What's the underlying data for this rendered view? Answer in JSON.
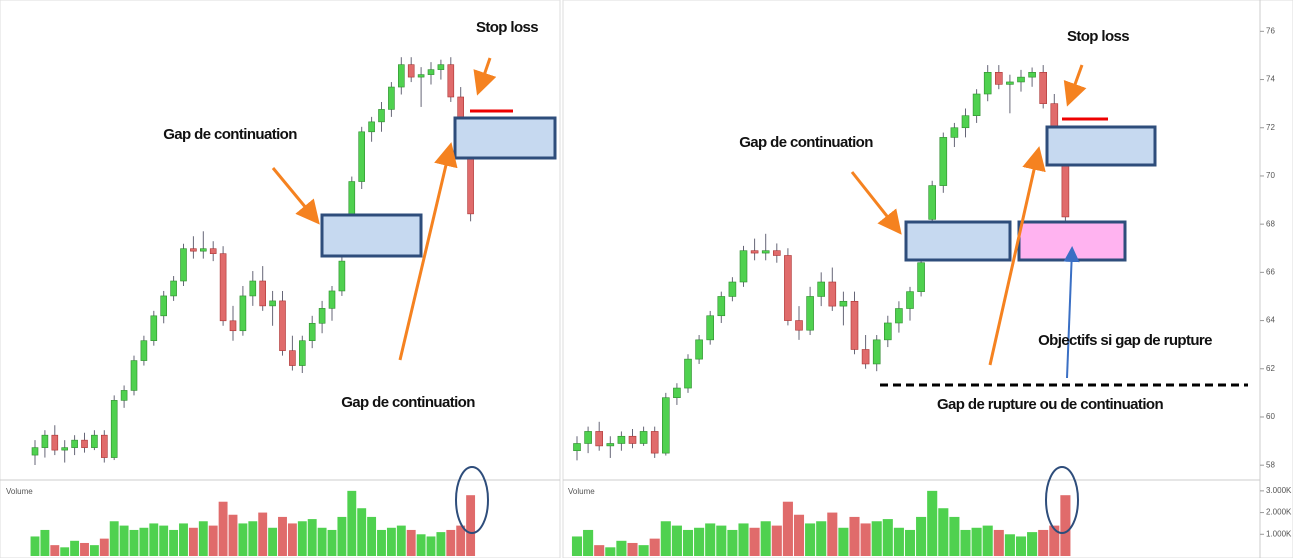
{
  "chart_data": [
    {
      "type": "candlestick",
      "annotations": [
        "Stop loss",
        "Gap de continuation",
        "Gap de continuation"
      ],
      "volume_label": "Volume",
      "ylim": [
        58,
        76.9
      ],
      "open": [
        58.6,
        58.9,
        59.4,
        58.8,
        58.9,
        59.2,
        58.9,
        59.4,
        58.5,
        60.8,
        61.2,
        62.4,
        63.2,
        64.2,
        65.0,
        65.6,
        66.9,
        66.8,
        66.9,
        66.7,
        64.0,
        63.6,
        65.0,
        65.6,
        64.6,
        64.8,
        62.8,
        62.2,
        63.2,
        63.9,
        64.5,
        65.2,
        68.2,
        69.6,
        71.6,
        72.0,
        72.5,
        73.4,
        74.3,
        73.8,
        73.9,
        74.1,
        74.3,
        73.0,
        70.6
      ],
      "high": [
        59.2,
        59.6,
        59.8,
        59.2,
        59.4,
        59.5,
        59.6,
        59.6,
        61.0,
        61.4,
        62.6,
        63.4,
        64.4,
        65.2,
        65.8,
        67.1,
        67.4,
        67.6,
        67.2,
        67.0,
        64.6,
        65.4,
        66.0,
        66.2,
        65.2,
        65.2,
        63.4,
        63.4,
        64.2,
        64.8,
        65.4,
        66.6,
        69.8,
        71.8,
        72.2,
        72.8,
        73.6,
        74.6,
        74.6,
        74.2,
        74.4,
        74.5,
        74.6,
        73.4,
        71.0
      ],
      "low": [
        58.2,
        58.5,
        58.6,
        58.3,
        58.6,
        58.7,
        58.8,
        58.3,
        58.4,
        60.5,
        61.0,
        62.2,
        63.0,
        63.9,
        64.8,
        65.4,
        66.5,
        66.5,
        66.4,
        63.8,
        63.2,
        63.4,
        64.6,
        64.4,
        63.8,
        62.6,
        62.0,
        61.9,
        62.9,
        63.5,
        64.0,
        65.0,
        68.0,
        69.3,
        71.2,
        71.6,
        72.2,
        73.1,
        73.6,
        72.6,
        73.5,
        73.7,
        72.8,
        71.2,
        68.0
      ],
      "close": [
        58.9,
        59.4,
        58.8,
        58.9,
        59.2,
        58.9,
        59.4,
        58.5,
        60.8,
        61.2,
        62.4,
        63.2,
        64.2,
        65.0,
        65.6,
        66.9,
        66.8,
        66.9,
        66.7,
        64.0,
        63.6,
        65.0,
        65.6,
        64.6,
        64.8,
        62.8,
        62.2,
        63.2,
        63.9,
        64.5,
        65.2,
        66.4,
        69.6,
        71.6,
        72.0,
        72.5,
        73.4,
        74.3,
        73.8,
        73.9,
        74.1,
        74.3,
        73.0,
        71.5,
        68.3
      ],
      "volume": {
        "values": [
          900,
          1200,
          500,
          400,
          700,
          600,
          500,
          800,
          1600,
          1400,
          1200,
          1300,
          1500,
          1400,
          1200,
          1500,
          1300,
          1600,
          1400,
          2500,
          1900,
          1500,
          1600,
          2000,
          1300,
          1800,
          1500,
          1600,
          1700,
          1300,
          1200,
          1800,
          3000,
          2200,
          1800,
          1200,
          1300,
          1400,
          1200,
          1000,
          900,
          1100,
          1200,
          1400,
          2800
        ],
        "ylim": [
          0,
          3500
        ]
      }
    },
    {
      "type": "candlestick",
      "annotations": [
        "Stop loss",
        "Gap de continuation",
        "Objectifs si gap de rupture",
        "Gap de rupture ou de continuation"
      ],
      "volume_label": "Volume",
      "ylim": [
        57.8,
        77.3
      ],
      "yticks": [
        58,
        60,
        62,
        64,
        66,
        68,
        70,
        72,
        74,
        76
      ],
      "open": [
        58.6,
        58.9,
        59.4,
        58.8,
        58.9,
        59.2,
        58.9,
        59.4,
        58.5,
        60.8,
        61.2,
        62.4,
        63.2,
        64.2,
        65.0,
        65.6,
        66.9,
        66.8,
        66.9,
        66.7,
        64.0,
        63.6,
        65.0,
        65.6,
        64.6,
        64.8,
        62.8,
        62.2,
        63.2,
        63.9,
        64.5,
        65.2,
        68.2,
        69.6,
        71.6,
        72.0,
        72.5,
        73.4,
        74.3,
        73.8,
        73.9,
        74.1,
        74.3,
        73.0,
        70.6
      ],
      "high": [
        59.2,
        59.6,
        59.8,
        59.2,
        59.4,
        59.5,
        59.6,
        59.6,
        61.0,
        61.4,
        62.6,
        63.4,
        64.4,
        65.2,
        65.8,
        67.1,
        67.4,
        67.6,
        67.2,
        67.0,
        64.6,
        65.4,
        66.0,
        66.2,
        65.2,
        65.2,
        63.4,
        63.4,
        64.2,
        64.8,
        65.4,
        66.6,
        69.8,
        71.8,
        72.2,
        72.8,
        73.6,
        74.6,
        74.6,
        74.2,
        74.4,
        74.5,
        74.6,
        73.4,
        71.0
      ],
      "low": [
        58.2,
        58.5,
        58.6,
        58.3,
        58.6,
        58.7,
        58.8,
        58.3,
        58.4,
        60.5,
        61.0,
        62.2,
        63.0,
        63.9,
        64.8,
        65.4,
        66.5,
        66.5,
        66.4,
        63.8,
        63.2,
        63.4,
        64.6,
        64.4,
        63.8,
        62.6,
        62.0,
        61.9,
        62.9,
        63.5,
        64.0,
        65.0,
        68.0,
        69.3,
        71.2,
        71.6,
        72.2,
        73.1,
        73.6,
        72.6,
        73.5,
        73.7,
        72.8,
        71.2,
        68.0
      ],
      "close": [
        58.9,
        59.4,
        58.8,
        58.9,
        59.2,
        58.9,
        59.4,
        58.5,
        60.8,
        61.2,
        62.4,
        63.2,
        64.2,
        65.0,
        65.6,
        66.9,
        66.8,
        66.9,
        66.7,
        64.0,
        63.6,
        65.0,
        65.6,
        64.6,
        64.8,
        62.8,
        62.2,
        63.2,
        63.9,
        64.5,
        65.2,
        66.4,
        69.6,
        71.6,
        72.0,
        72.5,
        73.4,
        74.3,
        73.8,
        73.9,
        74.1,
        74.3,
        73.0,
        71.5,
        68.3
      ],
      "volume": {
        "values": [
          900,
          1200,
          500,
          400,
          700,
          600,
          500,
          800,
          1600,
          1400,
          1200,
          1300,
          1500,
          1400,
          1200,
          1500,
          1300,
          1600,
          1400,
          2500,
          1900,
          1500,
          1600,
          2000,
          1300,
          1800,
          1500,
          1600,
          1700,
          1300,
          1200,
          1800,
          3000,
          2200,
          1800,
          1200,
          1300,
          1400,
          1200,
          1000,
          900,
          1100,
          1200,
          1400,
          2800
        ],
        "ylim": [
          0,
          3500
        ],
        "yticks": [
          {
            "value": 1000,
            "label": "1.000K"
          },
          {
            "value": 2000,
            "label": "2.000K"
          },
          {
            "value": 3000,
            "label": "3.000K"
          }
        ]
      }
    }
  ]
}
